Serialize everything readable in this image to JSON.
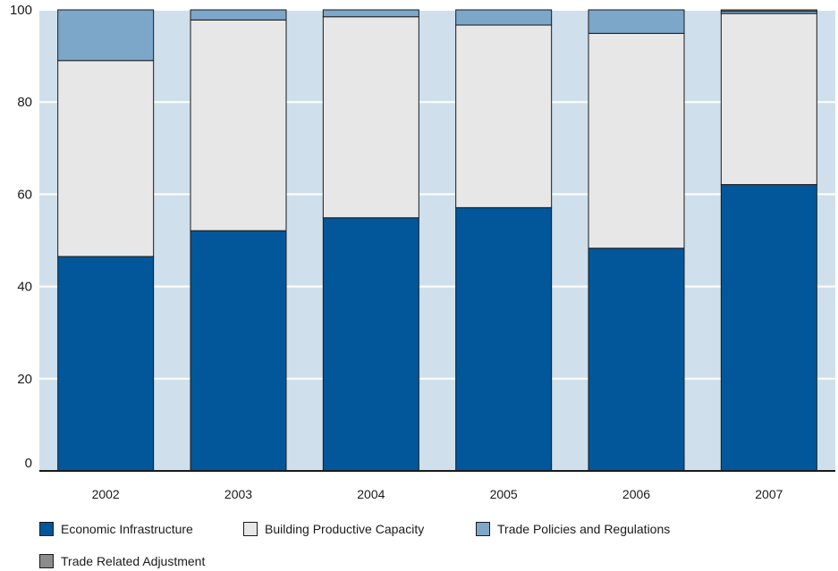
{
  "chart_data": {
    "type": "bar",
    "stacked": true,
    "categories": [
      "2002",
      "2003",
      "2004",
      "2005",
      "2006",
      "2007"
    ],
    "series": [
      {
        "name": "Economic Infrastructure",
        "color": "#02579a",
        "values": [
          46.5,
          52.1,
          54.9,
          57.1,
          48.3,
          62.1
        ]
      },
      {
        "name": "Building Productive Capacity",
        "color": "#e7e7e7",
        "values": [
          42.5,
          45.7,
          43.6,
          39.6,
          46.6,
          37.1
        ]
      },
      {
        "name": "Trade Policies and Regulations",
        "color": "#7da7c9",
        "values": [
          11.0,
          2.2,
          1.5,
          3.3,
          5.1,
          0.5
        ]
      },
      {
        "name": "Trade Related Adjustment",
        "color": "#8c8c8c",
        "values": [
          0,
          0,
          0,
          0,
          0,
          0.3
        ]
      }
    ],
    "yticks": [
      0,
      20,
      40,
      60,
      80,
      100
    ],
    "ylim": [
      0,
      100
    ],
    "grid": true,
    "plot_background": "#cfe0ec",
    "legend_position": "bottom"
  }
}
